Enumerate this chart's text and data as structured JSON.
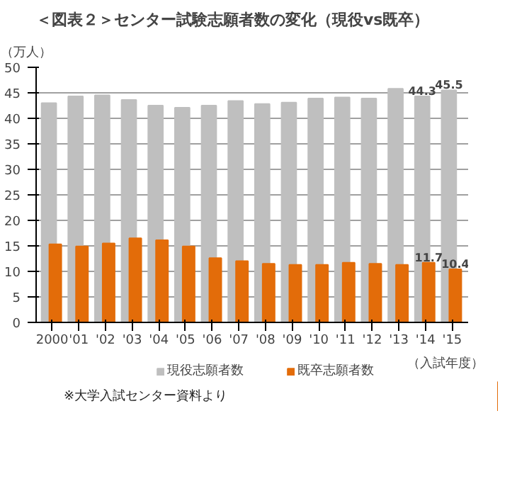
{
  "chart_data": {
    "type": "bar",
    "title": "＜図表２＞センター試験志願者数の変化（現役vs既卒）",
    "ylabel": "（万人）",
    "xlabel": "（入試年度）",
    "categories": [
      "2000",
      "'01",
      "'02",
      "'03",
      "'04",
      "'05",
      "'06",
      "'07",
      "'08",
      "'09",
      "'10",
      "'11",
      "'12",
      "'13",
      "'14",
      "'15"
    ],
    "series": [
      {
        "name": "現役志願者数",
        "color": "#bfbfbf",
        "values": [
          43.0,
          44.3,
          44.5,
          43.6,
          42.5,
          42.1,
          42.5,
          43.4,
          42.8,
          43.1,
          43.9,
          44.1,
          43.9,
          45.8,
          44.3,
          45.5
        ],
        "value_labels": [
          null,
          null,
          null,
          null,
          null,
          null,
          null,
          null,
          null,
          null,
          null,
          null,
          null,
          null,
          "44.3",
          "45.5"
        ]
      },
      {
        "name": "既卒志願者数",
        "color": "#e36c09",
        "values": [
          15.3,
          14.9,
          15.5,
          16.5,
          16.1,
          14.9,
          12.6,
          12.0,
          11.5,
          11.3,
          11.3,
          11.7,
          11.5,
          11.3,
          11.7,
          10.4
        ],
        "value_labels": [
          null,
          null,
          null,
          null,
          null,
          null,
          null,
          null,
          null,
          null,
          null,
          null,
          null,
          null,
          "11.7",
          "10.4"
        ]
      }
    ],
    "ylim": [
      0,
      50
    ],
    "yticks": [
      0,
      5,
      10,
      15,
      20,
      25,
      30,
      35,
      40,
      45,
      50
    ],
    "grid": "y",
    "legend": "bottom",
    "annotations": [
      "※大学入試センター資料より"
    ]
  }
}
